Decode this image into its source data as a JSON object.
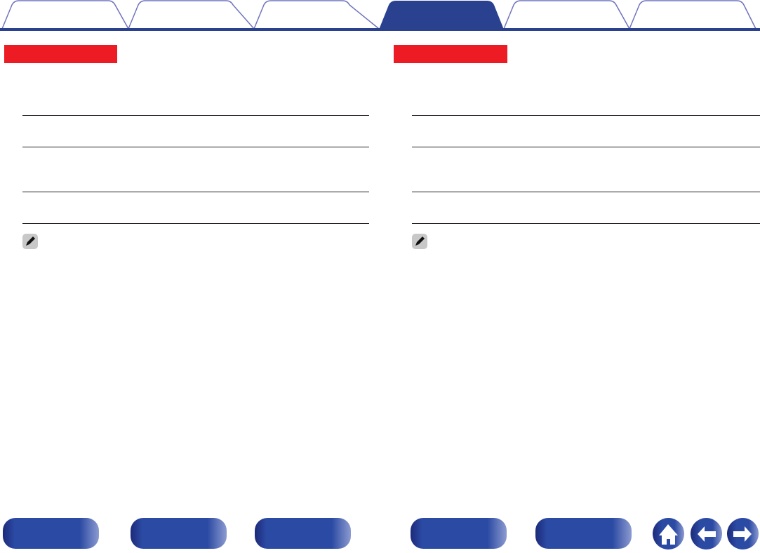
{
  "colors": {
    "tab_outline": "#6f73bd",
    "active_tab": "#29418f",
    "section_label": "#ed1c24",
    "button": "#2b4aa3"
  },
  "header": {
    "tabs": [
      {
        "active": false
      },
      {
        "active": false
      },
      {
        "active": false
      },
      {
        "active": true
      },
      {
        "active": false
      },
      {
        "active": false
      }
    ]
  },
  "icons": {
    "note": "pencil-icon",
    "home": "home-icon",
    "back": "arrow-left-icon",
    "forward": "arrow-right-icon"
  }
}
